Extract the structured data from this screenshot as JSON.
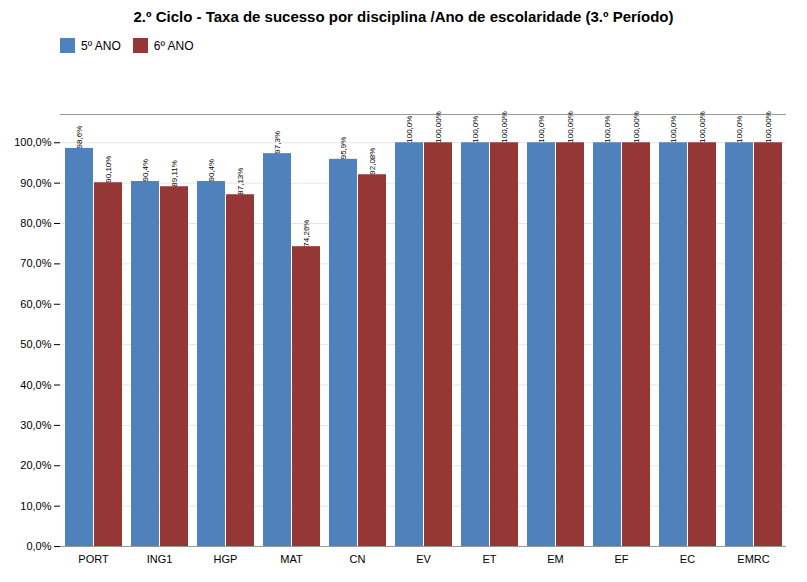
{
  "chart_data": {
    "type": "bar",
    "title": "2.º Ciclo - Taxa de sucesso por disciplina /Ano de escolaridade (3.º Período)",
    "categories": [
      "PORT",
      "ING1",
      "HGP",
      "MAT",
      "CN",
      "EV",
      "ET",
      "EM",
      "EF",
      "EC",
      "EMRC"
    ],
    "series": [
      {
        "name": "5º ANO",
        "color": "#4F81BD",
        "values": [
          98.6,
          90.4,
          90.4,
          97.3,
          95.9,
          100.0,
          100.0,
          100.0,
          100.0,
          100.0,
          100.0
        ],
        "value_labels": [
          "98,6%",
          "90,4%",
          "90,4%",
          "97,3%",
          "95,9%",
          "100,0%",
          "100,0%",
          "100,0%",
          "100,0%",
          "100,0%",
          "100,0%"
        ]
      },
      {
        "name": "6º ANO",
        "color": "#953735",
        "values": [
          90.1,
          89.11,
          87.13,
          74.26,
          92.08,
          100.0,
          100.0,
          100.0,
          100.0,
          100.0,
          100.0
        ],
        "value_labels": [
          "90,10%",
          "89,11%",
          "87,13%",
          "74,26%",
          "92,08%",
          "100,00%",
          "100,00%",
          "100,00%",
          "100,00%",
          "100,00%",
          "100,00%"
        ]
      }
    ],
    "ylim": [
      0,
      107
    ],
    "yticks": [
      {
        "value": 0,
        "label": "0,0%"
      },
      {
        "value": 10,
        "label": "10,0%"
      },
      {
        "value": 20,
        "label": "20,0%"
      },
      {
        "value": 30,
        "label": "30,0%"
      },
      {
        "value": 40,
        "label": "40,0%"
      },
      {
        "value": 50,
        "label": "50,0%"
      },
      {
        "value": 60,
        "label": "60,0%"
      },
      {
        "value": 70,
        "label": "70,0%"
      },
      {
        "value": 80,
        "label": "80,0%"
      },
      {
        "value": 90,
        "label": "90,0%"
      },
      {
        "value": 100,
        "label": "100,0%"
      }
    ],
    "grid": true,
    "legend": "upper left",
    "data_labels": true
  }
}
